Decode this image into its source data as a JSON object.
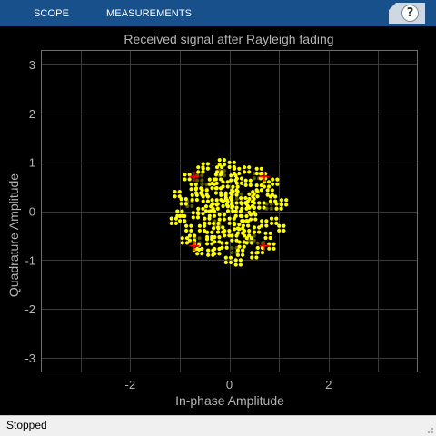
{
  "toolstrip": {
    "tabs": [
      {
        "label": "SCOPE"
      },
      {
        "label": "MEASUREMENTS"
      }
    ],
    "help_label": "?"
  },
  "status": {
    "text": "Stopped"
  },
  "colors": {
    "toolstrip": "#17508a",
    "axes_background": "#000000",
    "grid": "#3a3a3a",
    "axes_frame": "#6e6e6e",
    "text": "#b4b4b4",
    "points": "#ffff00",
    "points_old": "#5a5a00",
    "reference": "#ff0000"
  },
  "chart_data": {
    "type": "scatter",
    "title": "Received signal after Rayleigh fading",
    "xlabel": "In-phase Amplitude",
    "ylabel": "Quadrature Amplitude",
    "xlim": [
      -3.8,
      3.8
    ],
    "ylim": [
      -3.3,
      3.3
    ],
    "xticks": [
      -2,
      0,
      2
    ],
    "xtick_labels": [
      "-2",
      "0",
      "2"
    ],
    "yticks": [
      3,
      2,
      1,
      0,
      -1,
      -2,
      -3
    ],
    "ytick_labels": [
      "3",
      "2",
      "1",
      "0",
      "-1",
      "-2",
      "-3"
    ],
    "grid": true,
    "reference_constellation": [
      {
        "x": 0.707,
        "y": 0.707
      },
      {
        "x": -0.707,
        "y": 0.707
      },
      {
        "x": -0.707,
        "y": -0.707
      },
      {
        "x": 0.707,
        "y": -0.707
      }
    ],
    "series": [
      {
        "values": [
          [
            0.02,
            0.05
          ],
          [
            0.1,
            0.12
          ],
          [
            -0.08,
            0.15
          ],
          [
            0.18,
            -0.05
          ],
          [
            -0.15,
            -0.12
          ],
          [
            0.05,
            -0.2
          ],
          [
            -0.02,
            0.32
          ],
          [
            0.28,
            0.22
          ],
          [
            -0.3,
            0.18
          ],
          [
            0.33,
            -0.25
          ],
          [
            -0.27,
            -0.3
          ],
          [
            0.12,
            0.45
          ],
          [
            -0.42,
            0.05
          ],
          [
            0.45,
            0.02
          ],
          [
            -0.05,
            -0.45
          ],
          [
            0.22,
            -0.4
          ],
          [
            -0.22,
            0.42
          ],
          [
            0.52,
            0.35
          ],
          [
            -0.5,
            0.38
          ],
          [
            0.55,
            -0.38
          ],
          [
            -0.55,
            -0.35
          ],
          [
            0.38,
            0.58
          ],
          [
            -0.35,
            0.6
          ],
          [
            0.4,
            -0.6
          ],
          [
            -0.4,
            -0.62
          ],
          [
            0.65,
            0.12
          ],
          [
            -0.68,
            -0.08
          ],
          [
            0.08,
            0.68
          ],
          [
            -0.1,
            -0.7
          ],
          [
            0.75,
            0.55
          ],
          [
            -0.72,
            0.5
          ],
          [
            0.78,
            -0.5
          ],
          [
            -0.75,
            -0.55
          ],
          [
            0.15,
            0.82
          ],
          [
            -0.2,
            0.85
          ],
          [
            0.22,
            -0.85
          ],
          [
            -0.25,
            -0.82
          ],
          [
            0.88,
            0.25
          ],
          [
            -0.92,
            0.2
          ],
          [
            0.9,
            -0.2
          ],
          [
            -0.95,
            -0.15
          ],
          [
            0.6,
            0.82
          ],
          [
            -0.58,
            0.85
          ],
          [
            0.62,
            -0.8
          ],
          [
            -0.6,
            -0.82
          ],
          [
            1.0,
            0.1
          ],
          [
            -1.0,
            -0.05
          ],
          [
            0.05,
            0.95
          ],
          [
            -0.02,
            -1.0
          ],
          [
            1.05,
            -0.35
          ],
          [
            -1.05,
            0.35
          ],
          [
            0.3,
            0.1
          ],
          [
            -0.35,
            -0.05
          ],
          [
            0.15,
            -0.32
          ],
          [
            -0.12,
            0.28
          ],
          [
            0.48,
            -0.12
          ],
          [
            -0.48,
            0.25
          ],
          [
            0.2,
            0.62
          ],
          [
            -0.25,
            -0.58
          ],
          [
            0.7,
            -0.25
          ],
          [
            -0.7,
            0.28
          ],
          [
            0.35,
            0.85
          ],
          [
            -0.38,
            -0.85
          ],
          [
            0.92,
            0.6
          ],
          [
            -0.9,
            -0.6
          ],
          [
            0.45,
            0.3
          ],
          [
            -0.45,
            -0.2
          ],
          [
            0.1,
            -0.55
          ],
          [
            -0.08,
            0.55
          ],
          [
            0.82,
            0.38
          ],
          [
            -0.82,
            -0.35
          ],
          [
            0.55,
            0.12
          ],
          [
            -0.58,
            0.0
          ],
          [
            0.25,
            -0.68
          ],
          [
            -0.22,
            0.7
          ],
          [
            0.0,
            0.18
          ],
          [
            0.35,
            -0.45
          ],
          [
            -0.3,
            0.52
          ],
          [
            0.68,
            0.72
          ],
          [
            -0.66,
            -0.74
          ],
          [
            1.1,
            0.18
          ],
          [
            -1.12,
            -0.2
          ],
          [
            0.18,
            -1.05
          ],
          [
            -0.15,
            1.0
          ],
          [
            0.5,
            -0.9
          ],
          [
            -0.48,
            0.92
          ],
          [
            0.85,
            -0.72
          ],
          [
            -0.85,
            0.7
          ],
          [
            0.1,
            0.38
          ],
          [
            -0.18,
            -0.38
          ],
          [
            0.42,
            0.15
          ],
          [
            -0.4,
            -0.48
          ],
          [
            0.6,
            0.48
          ],
          [
            -0.62,
            0.42
          ],
          [
            0.3,
            -0.15
          ],
          [
            -0.28,
            0.1
          ]
        ]
      }
    ],
    "trail": [
      [
        0.55,
        0.72
      ],
      [
        -0.6,
        0.68
      ],
      [
        0.62,
        -0.7
      ],
      [
        -0.65,
        -0.6
      ],
      [
        0.8,
        0.1
      ],
      [
        -0.8,
        0.15
      ],
      [
        0.2,
        0.3
      ],
      [
        -0.25,
        -0.25
      ],
      [
        0.45,
        -0.55
      ],
      [
        -0.5,
        0.5
      ],
      [
        0.1,
        -0.8
      ],
      [
        -0.15,
        0.78
      ]
    ]
  }
}
